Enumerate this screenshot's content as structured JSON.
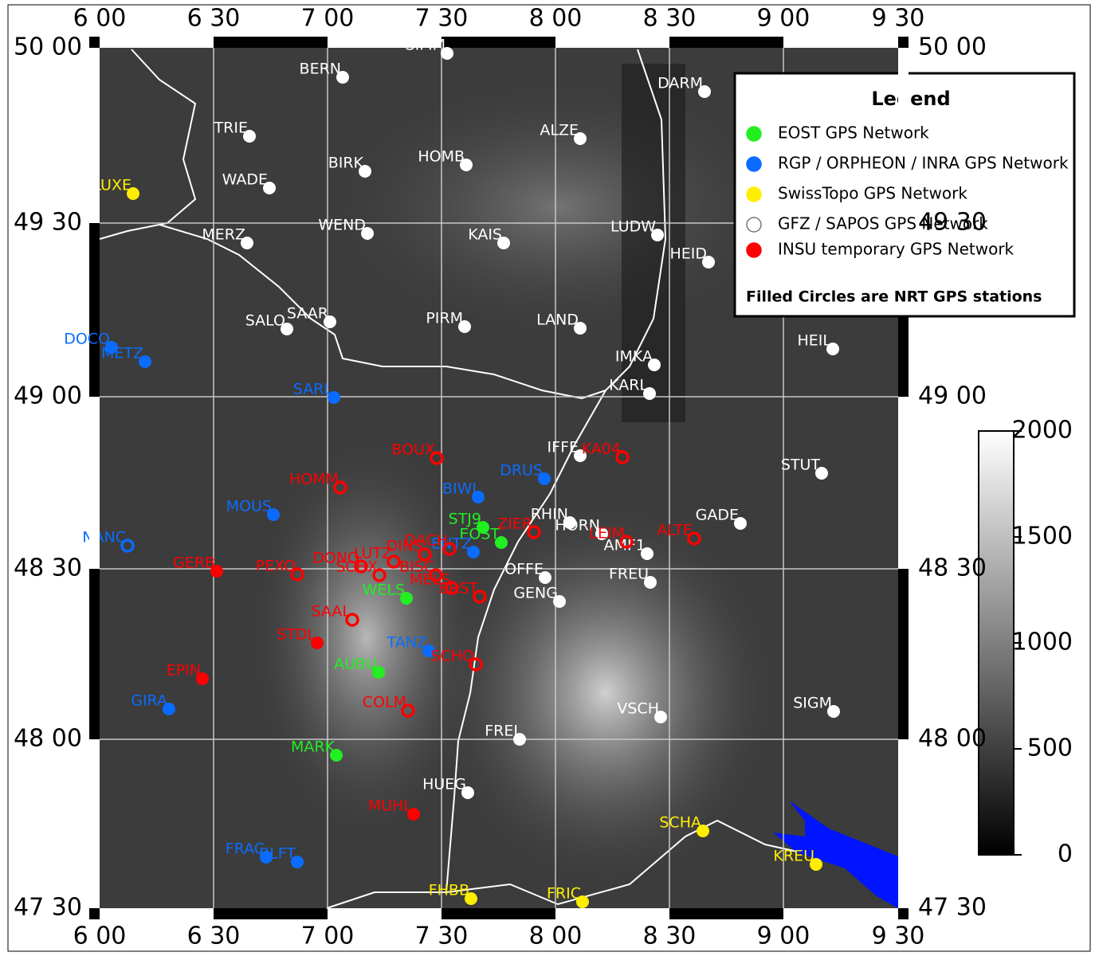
{
  "axes": {
    "top": [
      "6 00",
      "6 30",
      "7 00",
      "7 30",
      "8 00",
      "8 30",
      "9 00",
      "9 30"
    ],
    "bottom": [
      "6 00",
      "6 30",
      "7 00",
      "7 30",
      "8 00",
      "8 30",
      "9 00",
      "9 30"
    ],
    "left": [
      "50 00",
      "49 30",
      "49 00",
      "48 30",
      "48 00",
      "47 30"
    ],
    "right": [
      "50 00",
      "49 30",
      "49 00",
      "48 30",
      "48 00",
      "47 30"
    ]
  },
  "legend": {
    "title": "Legend",
    "note": "Filled Circles are NRT GPS stations",
    "entries": [
      {
        "label": "EOST GPS Network",
        "color": "#22ee22",
        "filled": true,
        "stations": [
          {
            "name": "STJ9",
            "filled": true
          },
          {
            "name": "EOST",
            "filled": true
          },
          {
            "name": "WELS",
            "filled": true
          },
          {
            "name": "AUBU",
            "filled": true
          },
          {
            "name": "MARK",
            "filled": true
          }
        ]
      },
      {
        "label": "RGP / ORPHEON / INRA GPS Network",
        "color": "#0a6cff",
        "filled": true,
        "stations": [
          {
            "name": "DOCO",
            "filled": true
          },
          {
            "name": "METZ",
            "filled": true
          },
          {
            "name": "SARL",
            "filled": true
          },
          {
            "name": "DRUS",
            "filled": true
          },
          {
            "name": "BIWI",
            "filled": true
          },
          {
            "name": "MOUS",
            "filled": true
          },
          {
            "name": "ENTZ",
            "filled": true
          },
          {
            "name": "TANZ",
            "filled": true
          },
          {
            "name": "GIRA",
            "filled": true
          },
          {
            "name": "FRAC",
            "filled": true
          },
          {
            "name": "BLFT",
            "filled": true
          },
          {
            "name": "NANC",
            "filled": false
          }
        ]
      },
      {
        "label": "SwissTopo GPS Network",
        "color": "#ffee00",
        "filled": true,
        "stations": [
          {
            "name": "LUXE",
            "filled": true
          },
          {
            "name": "SCHA",
            "filled": true
          },
          {
            "name": "KREU",
            "filled": true
          },
          {
            "name": "FHBB",
            "filled": true
          },
          {
            "name": "FRIC",
            "filled": true
          }
        ]
      },
      {
        "label": "GFZ  / SAPOS GPS Network",
        "color": "#ffffff",
        "filled": false,
        "stations": [
          {
            "name": "SIMM",
            "filled": true
          },
          {
            "name": "BERN",
            "filled": true
          },
          {
            "name": "DARM",
            "filled": true
          },
          {
            "name": "TRIE",
            "filled": true
          },
          {
            "name": "ALZE",
            "filled": true
          },
          {
            "name": "HOMB",
            "filled": true
          },
          {
            "name": "BIRK",
            "filled": true
          },
          {
            "name": "WADE",
            "filled": true
          },
          {
            "name": "WEND",
            "filled": true
          },
          {
            "name": "MERZ",
            "filled": true
          },
          {
            "name": "KAIS",
            "filled": true
          },
          {
            "name": "LUDW",
            "filled": true
          },
          {
            "name": "HEID",
            "filled": true
          },
          {
            "name": "SALO",
            "filled": true
          },
          {
            "name": "SAAR",
            "filled": true
          },
          {
            "name": "PIRM",
            "filled": true
          },
          {
            "name": "LAND",
            "filled": true
          },
          {
            "name": "HEIL",
            "filled": true
          },
          {
            "name": "IMKA",
            "filled": true
          },
          {
            "name": "KARL",
            "filled": true
          },
          {
            "name": "IFFE",
            "filled": true
          },
          {
            "name": "STUT",
            "filled": true
          },
          {
            "name": "RHIN",
            "filled": true
          },
          {
            "name": "HORN",
            "filled": true
          },
          {
            "name": "GADE",
            "filled": true
          },
          {
            "name": "AMF1",
            "filled": true
          },
          {
            "name": "OFFE",
            "filled": true
          },
          {
            "name": "FREU",
            "filled": true
          },
          {
            "name": "GENG",
            "filled": true
          },
          {
            "name": "VSCH",
            "filled": true
          },
          {
            "name": "SIGM",
            "filled": true
          },
          {
            "name": "FREI",
            "filled": true
          },
          {
            "name": "HUEG",
            "filled": true
          }
        ]
      },
      {
        "label": "INSU temporary GPS Network",
        "color": "#ff0000",
        "filled": true,
        "stations": [
          {
            "name": "BOUX",
            "filled": false
          },
          {
            "name": "KA04",
            "filled": false
          },
          {
            "name": "HOMM",
            "filled": false
          },
          {
            "name": "ZIER",
            "filled": false
          },
          {
            "name": "LEIM",
            "filled": false
          },
          {
            "name": "ALTE",
            "filled": false
          },
          {
            "name": "DACH",
            "filled": false
          },
          {
            "name": "DINS",
            "filled": false
          },
          {
            "name": "LUTZ",
            "filled": false
          },
          {
            "name": "DONO",
            "filled": false
          },
          {
            "name": "PEXO",
            "filled": false
          },
          {
            "name": "BISC",
            "filled": false
          },
          {
            "name": "SCHX",
            "filled": false
          },
          {
            "name": "MELS",
            "filled": false
          },
          {
            "name": "ERST",
            "filled": false
          },
          {
            "name": "SAAL",
            "filled": false
          },
          {
            "name": "SCHO",
            "filled": false
          },
          {
            "name": "COLM",
            "filled": false
          },
          {
            "name": "GERB",
            "filled": true
          },
          {
            "name": "STDL",
            "filled": true
          },
          {
            "name": "EPIN",
            "filled": true
          },
          {
            "name": "MUHL",
            "filled": true
          }
        ]
      }
    ]
  },
  "colorbar": {
    "lim": [
      0,
      2000
    ],
    "ticks": [
      0,
      500,
      1000,
      1500,
      2000
    ]
  }
}
